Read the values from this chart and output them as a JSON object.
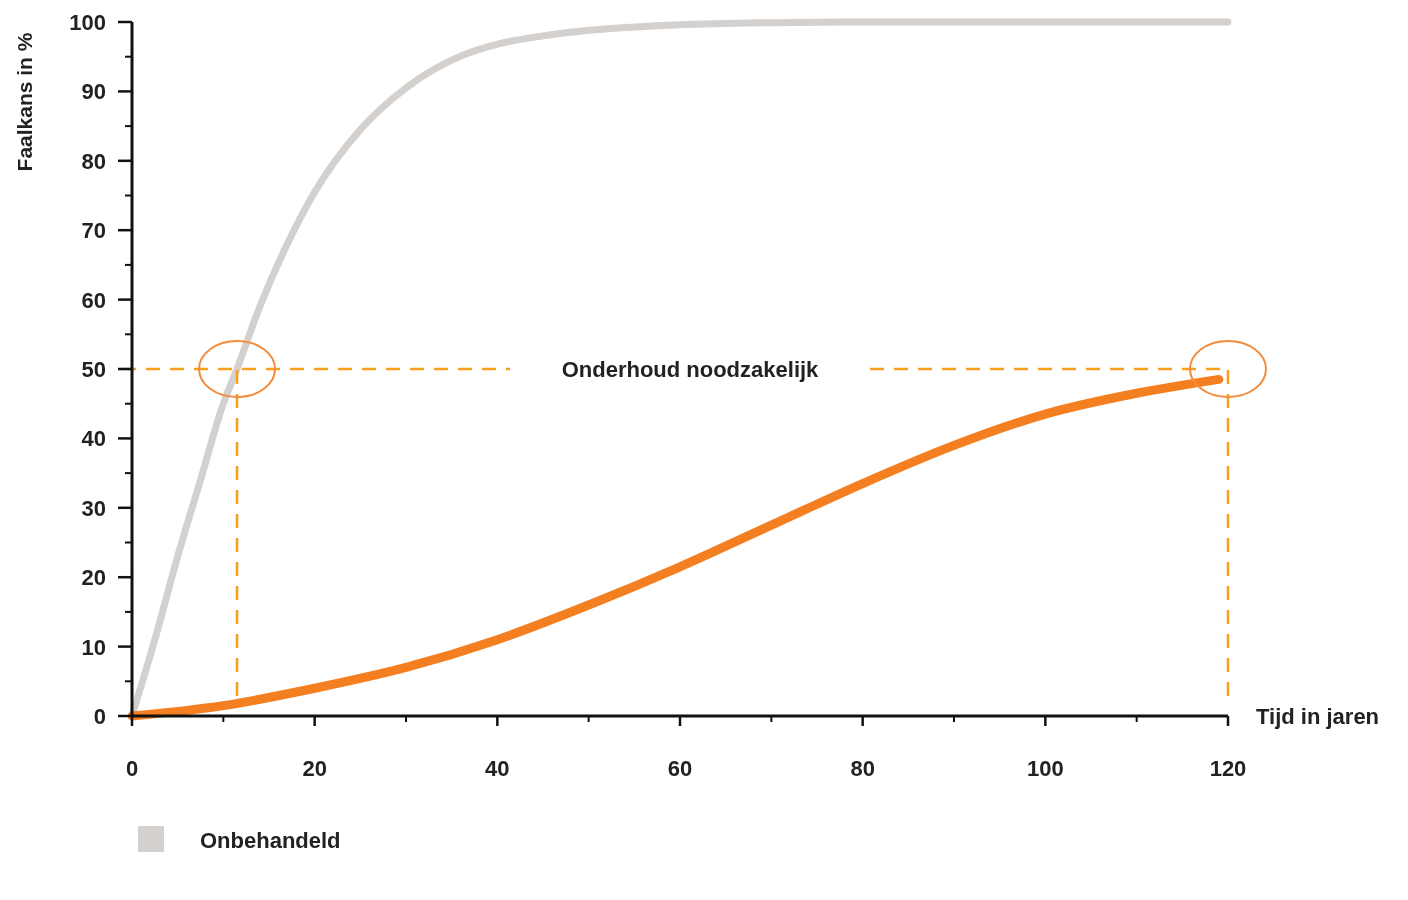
{
  "chart_data": {
    "type": "line",
    "xlabel": "Tijd in jaren",
    "ylabel": "Faalkans in %",
    "xlim": [
      0,
      120
    ],
    "ylim": [
      0,
      100
    ],
    "xticks": [
      0,
      20,
      40,
      60,
      80,
      100,
      120
    ],
    "yticks": [
      0,
      10,
      20,
      30,
      40,
      50,
      60,
      70,
      80,
      90,
      100
    ],
    "grid": false,
    "legend": "bottom",
    "marker": "none",
    "line_style": "solid",
    "series": [
      {
        "name": "Onbehandeld",
        "color": "#d3d0cd",
        "x": [
          0,
          2.5,
          5,
          7.5,
          10,
          11.5,
          14,
          17,
          20,
          25,
          30,
          35,
          40,
          45,
          50,
          60,
          70,
          80,
          100,
          120
        ],
        "values": [
          0,
          11,
          23,
          34,
          45,
          50,
          59,
          68,
          75.5,
          84.5,
          90.5,
          94.5,
          96.8,
          98,
          98.8,
          99.6,
          99.9,
          100,
          100,
          100
        ]
      },
      {
        "color": "#f47f20",
        "x": [
          0,
          10,
          20,
          30,
          40,
          50,
          60,
          70,
          80,
          90,
          100,
          110,
          119
        ],
        "values": [
          0,
          1.5,
          4,
          7,
          11,
          16,
          21.5,
          27.5,
          33.5,
          39,
          43.5,
          46.5,
          48.5
        ]
      }
    ],
    "ref_lines": [
      {
        "axis": "y",
        "value": 50,
        "label": "Onderhoud noodzakelijk",
        "color": "#f7a11a",
        "line_style": "dashed"
      },
      {
        "axis": "x",
        "value": 11.5,
        "label": null,
        "color": "#f7a11a",
        "line_style": "dashed"
      },
      {
        "axis": "x",
        "value": 120,
        "label": null,
        "color": "#f7a11a",
        "line_style": "dashed"
      }
    ]
  }
}
